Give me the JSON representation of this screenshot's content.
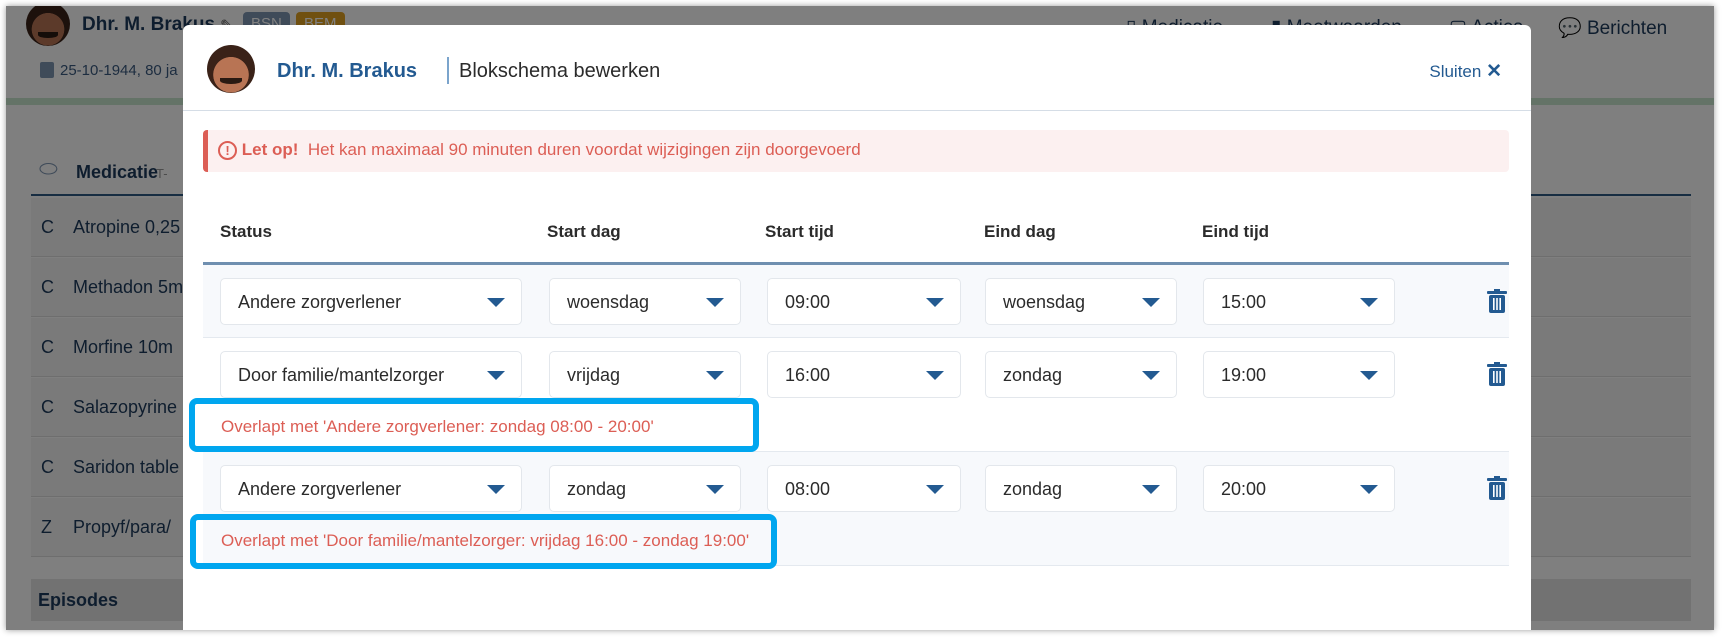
{
  "background": {
    "patient_name": "Dhr. M. Brakus",
    "badges": [
      {
        "label": "BSN",
        "color": "#7f96b2"
      },
      {
        "label": "BEM",
        "color": "#e0a020"
      }
    ],
    "birth": "25-10-1944, 80 ja",
    "nav": [
      "Medicatie",
      "Meetwaarden",
      "Acties",
      "Berichten"
    ],
    "section_title": "Medicatie",
    "section_sub": "T-",
    "medications": [
      {
        "code": "C",
        "name": "Atropine 0,25"
      },
      {
        "code": "C",
        "name": "Methadon 5m"
      },
      {
        "code": "C",
        "name": "Morfine 10m"
      },
      {
        "code": "C",
        "name": "Salazopyrine"
      },
      {
        "code": "C",
        "name": "Saridon table"
      },
      {
        "code": "Z",
        "name": "Propyf/para/"
      }
    ],
    "episodes": "Episodes"
  },
  "modal": {
    "patient_name": "Dhr. M. Brakus",
    "title": "Blokschema bewerken",
    "close_label": "Sluiten",
    "alert": {
      "strong": "Let op!",
      "text": "Het kan maximaal 90 minuten duren voordat wijzigingen zijn doorgevoerd"
    },
    "columns": [
      "Status",
      "Start dag",
      "Start tijd",
      "Eind dag",
      "Eind tijd"
    ],
    "rows": [
      {
        "status": "Andere zorgverlener",
        "start_day": "woensdag",
        "start_time": "09:00",
        "end_day": "woensdag",
        "end_time": "15:00",
        "error": ""
      },
      {
        "status": "Door familie/mantelzorger",
        "start_day": "vrijdag",
        "start_time": "16:00",
        "end_day": "zondag",
        "end_time": "19:00",
        "error": "Overlapt met 'Andere zorgverlener: zondag 08:00 - 20:00'"
      },
      {
        "status": "Andere zorgverlener",
        "start_day": "zondag",
        "start_time": "08:00",
        "end_day": "zondag",
        "end_time": "20:00",
        "error": "Overlapt met 'Door familie/mantelzorger: vrijdag 16:00 - zondag 19:00'"
      }
    ]
  },
  "colors": {
    "accent": "#235a91",
    "error": "#dc5e55",
    "highlight": "#00a6ef"
  }
}
